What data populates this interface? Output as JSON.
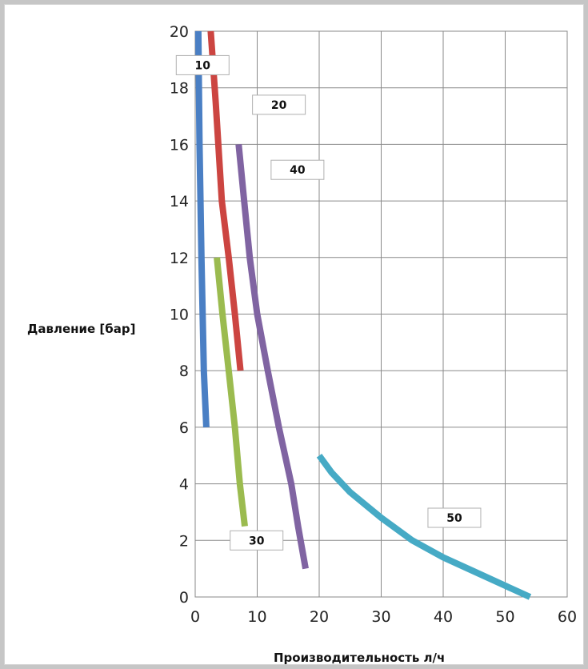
{
  "chart_data": {
    "type": "line",
    "title": "",
    "xlabel": "Производительность л/ч",
    "ylabel": "Давление [бар]",
    "xlim": [
      0,
      60
    ],
    "ylim": [
      0,
      20
    ],
    "xticks": [
      0,
      10,
      20,
      30,
      40,
      50,
      60
    ],
    "yticks": [
      0,
      2,
      4,
      6,
      8,
      10,
      12,
      14,
      16,
      18,
      20
    ],
    "grid": true,
    "series": [
      {
        "name": "10",
        "color": "#4a7fc4",
        "points": [
          [
            0.5,
            20
          ],
          [
            0.7,
            16
          ],
          [
            1.0,
            12
          ],
          [
            1.4,
            8
          ],
          [
            1.8,
            6
          ]
        ]
      },
      {
        "name": "20",
        "color": "#cc4541",
        "points": [
          [
            2.5,
            20
          ],
          [
            3.3,
            17.5
          ],
          [
            4.3,
            14
          ],
          [
            5.4,
            12
          ],
          [
            6.4,
            10
          ],
          [
            7.3,
            8
          ]
        ]
      },
      {
        "name": "30",
        "color": "#9bbb4f",
        "points": [
          [
            3.5,
            12
          ],
          [
            4.4,
            10
          ],
          [
            5.4,
            8
          ],
          [
            6.4,
            6
          ],
          [
            7.2,
            4
          ],
          [
            8.0,
            2.5
          ]
        ]
      },
      {
        "name": "40",
        "color": "#8064a2",
        "points": [
          [
            7.0,
            16
          ],
          [
            7.9,
            14
          ],
          [
            8.8,
            12
          ],
          [
            10.0,
            10
          ],
          [
            11.7,
            8
          ],
          [
            13.5,
            6
          ],
          [
            15.5,
            4
          ],
          [
            16.6,
            2.5
          ],
          [
            17.8,
            1
          ]
        ]
      },
      {
        "name": "50",
        "color": "#46aac5",
        "points": [
          [
            20,
            5
          ],
          [
            22,
            4.4
          ],
          [
            25,
            3.7
          ],
          [
            30,
            2.8
          ],
          [
            35,
            2.0
          ],
          [
            40,
            1.4
          ],
          [
            45,
            0.9
          ],
          [
            50,
            0.4
          ],
          [
            54,
            0
          ]
        ]
      }
    ],
    "data_labels": [
      {
        "text": "10",
        "series": "10",
        "x": 1.2,
        "y": 18.8
      },
      {
        "text": "20",
        "series": "20",
        "x": 13.5,
        "y": 17.4
      },
      {
        "text": "40",
        "series": "40",
        "x": 16.5,
        "y": 15.1
      },
      {
        "text": "30",
        "series": "30",
        "x": 9.9,
        "y": 2.0
      },
      {
        "text": "50",
        "series": "50",
        "x": 41.8,
        "y": 2.8
      }
    ]
  }
}
